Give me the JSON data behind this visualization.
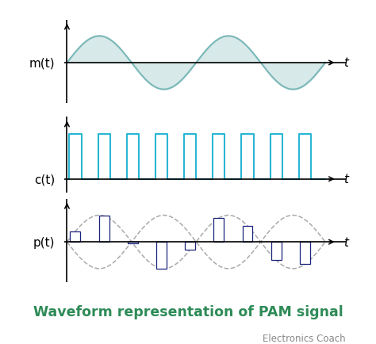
{
  "bg_color": "#ffffff",
  "title_text": "Waveform representation of PAM signal",
  "title_color": "#2e8b57",
  "title_fontsize": 12.5,
  "subtitle_text": "Electronics Coach",
  "subtitle_color": "#888888",
  "subtitle_fontsize": 8.5,
  "label_color": "#000000",
  "label_fontsize": 11,
  "axis_color": "#000000",
  "mt_label": "m(t)",
  "ct_label": "c(t)",
  "pt_label": "p(t)",
  "t_label": "t",
  "sine_color": "#7ab8b8",
  "sine_fill_color": "#b8d8d8",
  "sine_fill_alpha": 0.55,
  "pulse_color": "#29b6d4",
  "pam_bar_facecolor": "#ffffff",
  "pam_bar_edgecolor": "#1a237e",
  "pam_envelope_color": "#aaaaaa",
  "pam_envelope_style": "--"
}
